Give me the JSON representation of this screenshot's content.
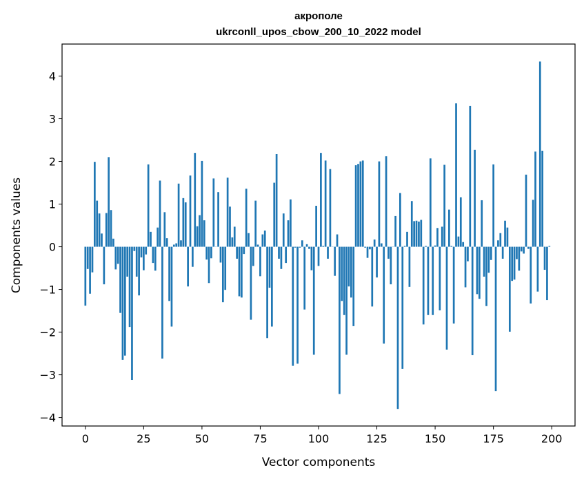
{
  "chart_data": {
    "type": "bar",
    "title": "акрополе",
    "subtitle": "ukrconll_upos_cbow_200_10_2022 model",
    "xlabel": "Vector components",
    "ylabel": "Components values",
    "xlim": [
      -10,
      210
    ],
    "ylim": [
      -4.2,
      4.75
    ],
    "xticks": [
      0,
      25,
      50,
      75,
      100,
      125,
      150,
      175,
      200
    ],
    "yticks": [
      -4,
      -3,
      -2,
      -1,
      0,
      1,
      2,
      3,
      4
    ],
    "bar_color": "#1f77b4",
    "grid": false,
    "values": [
      -1.38,
      -0.52,
      -1.1,
      -0.6,
      1.99,
      1.08,
      0.78,
      0.31,
      -0.88,
      0.79,
      2.1,
      0.86,
      0.19,
      -0.53,
      -0.4,
      -1.55,
      -2.65,
      -2.55,
      -0.7,
      -1.88,
      -3.12,
      -0.1,
      -0.7,
      -1.14,
      -0.25,
      -0.55,
      -0.18,
      1.93,
      0.35,
      -0.38,
      -0.56,
      0.45,
      1.55,
      -2.62,
      0.81,
      0.2,
      -1.27,
      -1.87,
      0.05,
      0.08,
      1.48,
      0.15,
      1.14,
      1.04,
      -0.93,
      1.67,
      -0.47,
      2.2,
      0.48,
      0.74,
      2.01,
      0.62,
      -0.3,
      -0.85,
      -0.27,
      1.6,
      0.0,
      1.28,
      -0.37,
      -1.3,
      -1.01,
      1.62,
      0.94,
      0.22,
      0.47,
      -0.28,
      -1.16,
      -1.19,
      -0.17,
      1.36,
      0.32,
      -1.71,
      -0.45,
      1.08,
      0.05,
      -0.69,
      0.29,
      0.38,
      -2.14,
      -0.96,
      -1.87,
      1.5,
      2.17,
      -0.28,
      -0.52,
      0.78,
      -0.38,
      0.62,
      1.11,
      -2.79,
      -0.02,
      -2.74,
      -0.02,
      0.15,
      -1.47,
      0.06,
      -0.05,
      -0.55,
      -2.53,
      0.96,
      -0.45,
      2.2,
      0.02,
      2.02,
      -0.28,
      1.82,
      0.0,
      -0.68,
      0.29,
      -3.45,
      -1.27,
      -1.6,
      -2.53,
      -0.93,
      -1.19,
      -1.86,
      1.91,
      1.94,
      2.0,
      2.02,
      -0.02,
      -0.26,
      -0.06,
      -1.4,
      0.17,
      -0.72,
      2.0,
      0.08,
      -2.27,
      2.12,
      -0.28,
      -0.88,
      0.0,
      0.72,
      -3.8,
      1.26,
      -2.86,
      0.02,
      0.35,
      -0.94,
      1.07,
      0.6,
      0.61,
      0.59,
      0.63,
      -1.82,
      0.02,
      -1.6,
      2.07,
      -1.6,
      0.03,
      0.44,
      -1.49,
      0.47,
      1.92,
      -2.41,
      0.87,
      0.02,
      -1.8,
      3.36,
      0.24,
      1.16,
      0.11,
      -0.95,
      -0.34,
      3.3,
      -2.54,
      2.27,
      -1.11,
      -1.22,
      1.09,
      -0.7,
      -1.39,
      -0.61,
      -0.31,
      1.93,
      -3.38,
      0.15,
      0.32,
      -0.28,
      0.61,
      0.45,
      -1.99,
      -0.8,
      -0.77,
      -0.29,
      -0.56,
      -0.11,
      -0.16,
      1.69,
      -0.05,
      -1.33,
      1.1,
      2.23,
      -1.05,
      4.34,
      2.25,
      -0.54,
      -1.25,
      0.02
    ]
  }
}
